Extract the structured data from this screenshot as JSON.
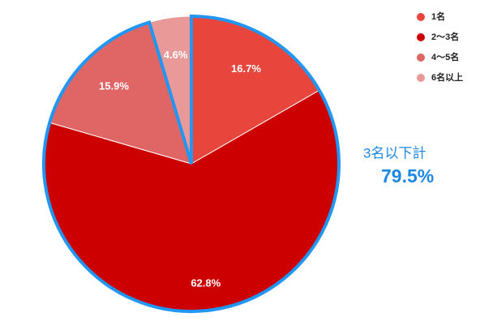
{
  "chart_data": {
    "type": "pie",
    "categories": [
      "1名",
      "2〜3名",
      "4〜5名",
      "6名以上"
    ],
    "values": [
      16.7,
      62.8,
      15.9,
      4.6
    ],
    "value_labels": [
      "16.7%",
      "62.8%",
      "15.9%",
      "4.6%"
    ],
    "colors": [
      "#e8453c",
      "#cc0000",
      "#e06666",
      "#ea9999"
    ],
    "annotations": [
      "3名以下計",
      "79.5%"
    ]
  }
}
